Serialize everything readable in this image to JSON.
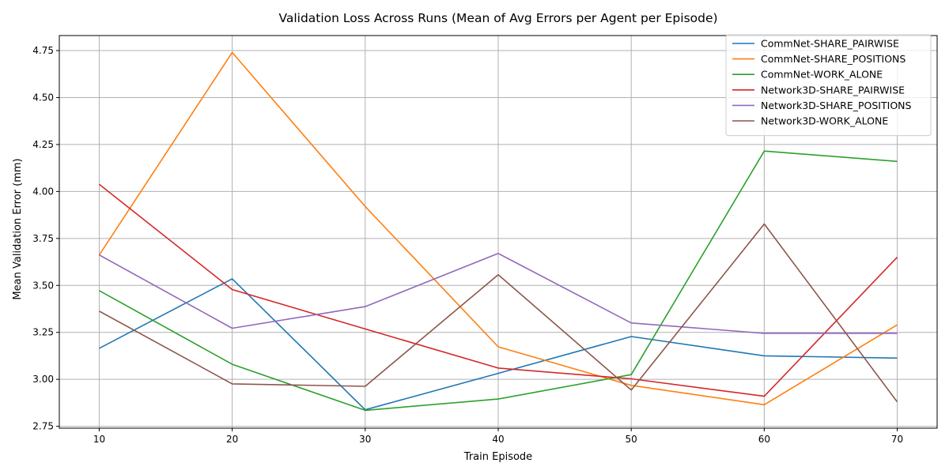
{
  "chart_data": {
    "type": "line",
    "title": "Validation Loss Across Runs (Mean of Avg Errors per Agent per Episode)",
    "xlabel": "Train Episode",
    "ylabel": "Mean Validation Error (mm)",
    "x": [
      10,
      20,
      30,
      40,
      50,
      60,
      70
    ],
    "xlim": [
      7,
      73
    ],
    "ylim": [
      2.74,
      4.83
    ],
    "xticks": [
      10,
      20,
      30,
      40,
      50,
      60,
      70
    ],
    "yticks": [
      2.75,
      3.0,
      3.25,
      3.5,
      3.75,
      4.0,
      4.25,
      4.5,
      4.75
    ],
    "ytick_labels": [
      "2.75",
      "3.00",
      "3.25",
      "3.50",
      "3.75",
      "4.00",
      "4.25",
      "4.50",
      "4.75"
    ],
    "grid": true,
    "legend_position": "top-right",
    "series": [
      {
        "name": "CommNet-SHARE_PAIRWISE",
        "color": "#1f77b4",
        "values": [
          3.165,
          3.535,
          2.838,
          3.032,
          3.228,
          3.125,
          3.113
        ]
      },
      {
        "name": "CommNet-SHARE_POSITIONS",
        "color": "#ff7f0e",
        "values": [
          3.662,
          4.74,
          3.92,
          3.173,
          2.968,
          2.865,
          3.29
        ]
      },
      {
        "name": "CommNet-WORK_ALONE",
        "color": "#2ca02c",
        "values": [
          3.472,
          3.08,
          2.835,
          2.895,
          3.025,
          4.215,
          4.16
        ]
      },
      {
        "name": "Network3D-SHARE_PAIRWISE",
        "color": "#d62728",
        "values": [
          4.038,
          3.478,
          3.268,
          3.06,
          3.003,
          2.91,
          3.65
        ]
      },
      {
        "name": "Network3D-SHARE_POSITIONS",
        "color": "#9467bd",
        "values": [
          3.662,
          3.272,
          3.387,
          3.67,
          3.3,
          3.245,
          3.245
        ]
      },
      {
        "name": "Network3D-WORK_ALONE",
        "color": "#8c564b",
        "values": [
          3.363,
          2.976,
          2.963,
          3.557,
          2.943,
          3.827,
          2.88
        ]
      }
    ]
  }
}
